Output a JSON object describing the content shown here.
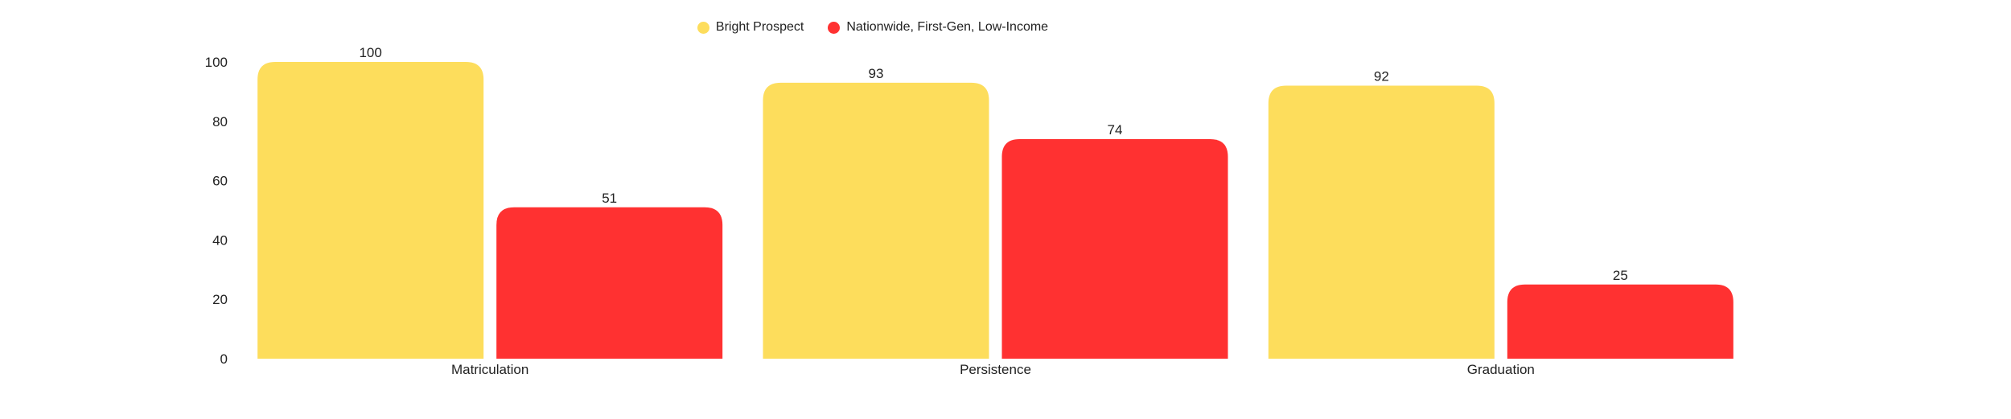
{
  "chart_data": {
    "type": "bar",
    "title": "",
    "xlabel": "",
    "ylabel": "",
    "categories": [
      "Matriculation",
      "Persistence",
      "Graduation"
    ],
    "series": [
      {
        "name": "Bright Prospect",
        "values": [
          100,
          93,
          92
        ],
        "color": "#FDDD5C"
      },
      {
        "name": "Nationwide, First-Gen, Low-Income",
        "values": [
          51,
          74,
          25
        ],
        "color": "#FF3131"
      }
    ],
    "ylim": [
      0,
      100
    ],
    "yticks": [
      0,
      20,
      40,
      60,
      80,
      100
    ],
    "grid": false,
    "legend_position": "top-center",
    "data_labels": true
  }
}
